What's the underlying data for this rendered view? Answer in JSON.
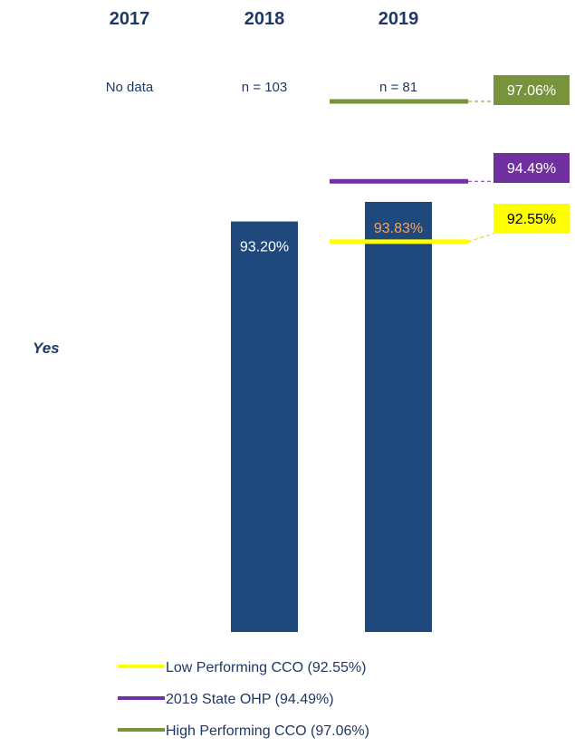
{
  "chart_data": {
    "type": "bar",
    "category_label": "Yes",
    "categories": [
      "2017",
      "2018",
      "2019"
    ],
    "sample_sizes": [
      "No data",
      "n = 103",
      "n = 81"
    ],
    "values": [
      null,
      93.2,
      93.83
    ],
    "value_labels": [
      "",
      "93.20%",
      "93.83%"
    ],
    "ylim": [
      80,
      100
    ],
    "colors": {
      "bar": "#1f497d",
      "label_2018": "#ffffff",
      "label_2019": "#f4a460"
    },
    "reference_lines": [
      {
        "name": "Low Performing CCO",
        "value": 92.55,
        "label": "92.55%",
        "legend": "Low Performing CCO (92.55%)",
        "color": "#ffff00",
        "text_color": "#000000"
      },
      {
        "name": "2019 State OHP",
        "value": 94.49,
        "label": "94.49%",
        "legend": "2019 State OHP (94.49%)",
        "color": "#7030a0",
        "text_color": "#ffffff"
      },
      {
        "name": "High Performing CCO",
        "value": 97.06,
        "label": "97.06%",
        "legend": "High Performing CCO (97.06%)",
        "color": "#77933c",
        "text_color": "#ffffff"
      }
    ],
    "legend_position": "bottom"
  }
}
